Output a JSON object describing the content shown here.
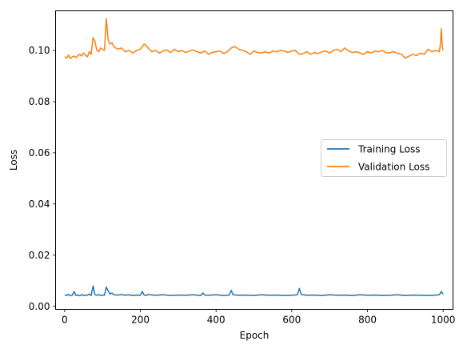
{
  "chart_data": {
    "type": "line",
    "xlabel": "Epoch",
    "ylabel": "Loss",
    "xlim": [
      -24,
      1026
    ],
    "ylim": [
      -0.0012,
      0.1155
    ],
    "xticks": [
      0,
      200,
      400,
      600,
      800,
      1000
    ],
    "xtick_labels": [
      "0",
      "200",
      "400",
      "600",
      "800",
      "1000"
    ],
    "yticks": [
      0.0,
      0.02,
      0.04,
      0.06,
      0.08,
      0.1
    ],
    "ytick_labels": [
      "0.00",
      "0.02",
      "0.04",
      "0.06",
      "0.08",
      "0.10"
    ],
    "grid": false,
    "legend_position": "center-right",
    "series": [
      {
        "name": "Training Loss",
        "color": "#1f77b4",
        "x": [
          0,
          5,
          10,
          15,
          20,
          25,
          30,
          35,
          40,
          45,
          50,
          55,
          60,
          65,
          70,
          75,
          80,
          85,
          90,
          95,
          100,
          105,
          110,
          115,
          120,
          125,
          130,
          140,
          150,
          160,
          170,
          180,
          190,
          200,
          205,
          210,
          215,
          220,
          240,
          260,
          280,
          300,
          320,
          340,
          360,
          365,
          370,
          380,
          400,
          420,
          435,
          440,
          445,
          460,
          480,
          500,
          520,
          540,
          560,
          580,
          600,
          615,
          620,
          625,
          640,
          660,
          680,
          700,
          720,
          740,
          760,
          780,
          800,
          820,
          840,
          860,
          880,
          900,
          920,
          940,
          960,
          980,
          990,
          995,
          1000
        ],
        "values": [
          0.0045,
          0.0042,
          0.0047,
          0.0041,
          0.0043,
          0.0058,
          0.0042,
          0.0044,
          0.0041,
          0.0046,
          0.0042,
          0.0044,
          0.0043,
          0.0048,
          0.0042,
          0.008,
          0.0045,
          0.0043,
          0.0046,
          0.0042,
          0.0044,
          0.0043,
          0.0075,
          0.006,
          0.0048,
          0.0052,
          0.0045,
          0.0044,
          0.0046,
          0.0043,
          0.0045,
          0.0042,
          0.0044,
          0.0043,
          0.0058,
          0.0044,
          0.0042,
          0.0046,
          0.0043,
          0.0045,
          0.0042,
          0.0044,
          0.0043,
          0.0045,
          0.0042,
          0.0052,
          0.0044,
          0.0043,
          0.0045,
          0.0042,
          0.0044,
          0.0062,
          0.0045,
          0.0043,
          0.0044,
          0.0042,
          0.0045,
          0.0043,
          0.0044,
          0.0042,
          0.0043,
          0.0045,
          0.007,
          0.0046,
          0.0043,
          0.0044,
          0.0042,
          0.0045,
          0.0043,
          0.0044,
          0.0042,
          0.0045,
          0.0043,
          0.0044,
          0.0042,
          0.0043,
          0.0045,
          0.0042,
          0.0044,
          0.0043,
          0.0042,
          0.0044,
          0.0045,
          0.0058,
          0.0047
        ]
      },
      {
        "name": "Validation Loss",
        "color": "#ff7f0e",
        "x": [
          0,
          5,
          10,
          15,
          20,
          25,
          30,
          35,
          40,
          45,
          50,
          55,
          60,
          65,
          70,
          75,
          80,
          85,
          90,
          95,
          100,
          105,
          110,
          115,
          120,
          125,
          130,
          140,
          150,
          160,
          170,
          180,
          190,
          200,
          210,
          215,
          220,
          230,
          240,
          250,
          260,
          270,
          280,
          290,
          300,
          310,
          320,
          330,
          340,
          350,
          360,
          370,
          380,
          390,
          400,
          410,
          420,
          430,
          440,
          450,
          460,
          470,
          480,
          490,
          500,
          510,
          520,
          530,
          540,
          550,
          560,
          570,
          580,
          590,
          600,
          610,
          620,
          630,
          640,
          650,
          660,
          670,
          680,
          690,
          700,
          710,
          720,
          730,
          740,
          750,
          760,
          770,
          780,
          790,
          800,
          810,
          820,
          830,
          840,
          850,
          860,
          870,
          880,
          890,
          900,
          910,
          920,
          930,
          940,
          950,
          960,
          970,
          980,
          985,
          990,
          993,
          995,
          998,
          1000
        ],
        "values": [
          0.0975,
          0.097,
          0.0982,
          0.0968,
          0.0975,
          0.0978,
          0.0972,
          0.098,
          0.0985,
          0.0978,
          0.099,
          0.0982,
          0.0975,
          0.0995,
          0.0985,
          0.105,
          0.1035,
          0.1,
          0.0995,
          0.101,
          0.1005,
          0.1,
          0.1125,
          0.104,
          0.1025,
          0.103,
          0.1015,
          0.1005,
          0.101,
          0.0995,
          0.1,
          0.099,
          0.1,
          0.1005,
          0.1025,
          0.102,
          0.101,
          0.0995,
          0.1,
          0.099,
          0.0998,
          0.1002,
          0.0992,
          0.1005,
          0.0995,
          0.1,
          0.0992,
          0.0998,
          0.1002,
          0.0995,
          0.099,
          0.0998,
          0.0985,
          0.0992,
          0.0995,
          0.0998,
          0.0988,
          0.0995,
          0.101,
          0.1015,
          0.1005,
          0.1,
          0.0995,
          0.0985,
          0.0998,
          0.0992,
          0.099,
          0.0995,
          0.099,
          0.0998,
          0.0995,
          0.1,
          0.0998,
          0.0992,
          0.0998,
          0.1,
          0.0985,
          0.0988,
          0.0995,
          0.0985,
          0.0992,
          0.0988,
          0.0995,
          0.0998,
          0.099,
          0.1,
          0.1005,
          0.0995,
          0.101,
          0.0998,
          0.0992,
          0.0995,
          0.099,
          0.0985,
          0.0995,
          0.099,
          0.0998,
          0.0995,
          0.1,
          0.099,
          0.0992,
          0.0995,
          0.0988,
          0.0985,
          0.097,
          0.0978,
          0.0985,
          0.098,
          0.099,
          0.0985,
          0.1005,
          0.0995,
          0.1,
          0.0998,
          0.0995,
          0.103,
          0.1085,
          0.101,
          0.1
        ]
      }
    ]
  }
}
